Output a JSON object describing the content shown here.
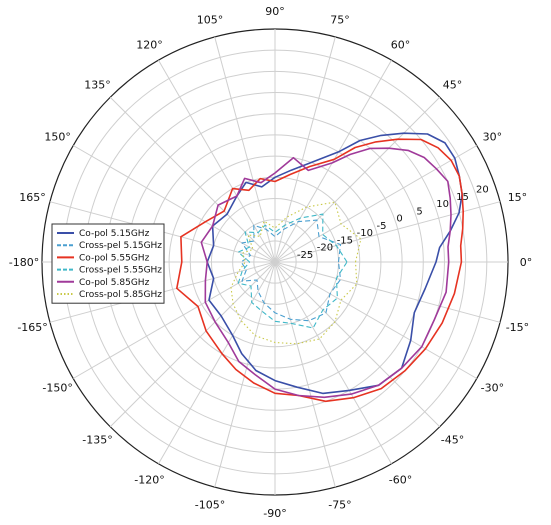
{
  "chart_data": {
    "type": "polar-line",
    "title": "",
    "angle_unit": "degree",
    "angle_ticks": [
      "90°",
      "75°",
      "60°",
      "45°",
      "30°",
      "15°",
      "0°",
      "-15°",
      "-30°",
      "-45°",
      "-60°",
      "-75°",
      "-90°",
      "-105°",
      "-120°",
      "-135°",
      "-150°",
      "-165°",
      "-180°",
      "165°",
      "150°",
      "135°",
      "120°",
      "105°"
    ],
    "angle_tick_values": [
      90,
      75,
      60,
      45,
      30,
      15,
      0,
      -15,
      -30,
      -45,
      -60,
      -75,
      -90,
      -105,
      -120,
      -135,
      -150,
      -165,
      -180,
      165,
      150,
      135,
      120,
      105
    ],
    "radial_ticks": [
      "-25",
      "-20",
      "-15",
      "-10",
      "-5",
      "0",
      "5",
      "10",
      "15",
      "20"
    ],
    "radial_tick_values": [
      -25,
      -20,
      -15,
      -10,
      -5,
      0,
      5,
      10,
      15,
      20
    ],
    "radial_range": [
      -30,
      25
    ],
    "legend_position": "left",
    "grid": true,
    "series": [
      {
        "name": "Co-pol 5.15GHz",
        "color": "#3a4fa8",
        "dash": "solid",
        "points": [
          [
            0,
            8
          ],
          [
            5,
            9
          ],
          [
            10,
            12
          ],
          [
            15,
            15
          ],
          [
            20,
            17
          ],
          [
            25,
            18
          ],
          [
            30,
            19
          ],
          [
            35,
            19
          ],
          [
            40,
            17
          ],
          [
            45,
            13
          ],
          [
            50,
            9
          ],
          [
            55,
            5
          ],
          [
            60,
            0
          ],
          [
            70,
            -5
          ],
          [
            80,
            -8
          ],
          [
            90,
            -10
          ],
          [
            100,
            -12
          ],
          [
            110,
            -10
          ],
          [
            120,
            -12
          ],
          [
            135,
            -14
          ],
          [
            150,
            -13
          ],
          [
            165,
            -15
          ],
          [
            180,
            -14
          ],
          [
            195,
            -15
          ],
          [
            210,
            -12
          ],
          [
            225,
            -12
          ],
          [
            240,
            -10
          ],
          [
            250,
            -7
          ],
          [
            260,
            -4
          ],
          [
            270,
            -2
          ],
          [
            280,
            0
          ],
          [
            290,
            3
          ],
          [
            300,
            5
          ],
          [
            310,
            8
          ],
          [
            320,
            9
          ],
          [
            330,
            7
          ],
          [
            340,
            5
          ],
          [
            350,
            6
          ]
        ]
      },
      {
        "name": "Cross-pel 5.15GHz",
        "color": "#4a9fd0",
        "dash": "dashed",
        "points": [
          [
            0,
            -15
          ],
          [
            15,
            -14
          ],
          [
            30,
            -18
          ],
          [
            45,
            -16
          ],
          [
            60,
            -19
          ],
          [
            75,
            -22
          ],
          [
            90,
            -24
          ],
          [
            105,
            -22
          ],
          [
            120,
            -20
          ],
          [
            135,
            -23
          ],
          [
            150,
            -21
          ],
          [
            165,
            -24
          ],
          [
            180,
            -22
          ],
          [
            195,
            -23
          ],
          [
            210,
            -21
          ],
          [
            225,
            -24
          ],
          [
            240,
            -22
          ],
          [
            255,
            -20
          ],
          [
            270,
            -18
          ],
          [
            285,
            -16
          ],
          [
            300,
            -14
          ],
          [
            315,
            -13
          ],
          [
            330,
            -15
          ],
          [
            345,
            -14
          ]
        ]
      },
      {
        "name": "Co-pol 5.55GHz",
        "color": "#e63322",
        "dash": "solid",
        "points": [
          [
            0,
            14
          ],
          [
            5,
            14
          ],
          [
            10,
            15
          ],
          [
            15,
            16
          ],
          [
            20,
            17
          ],
          [
            25,
            18
          ],
          [
            30,
            18
          ],
          [
            35,
            17
          ],
          [
            40,
            15
          ],
          [
            45,
            11
          ],
          [
            50,
            7
          ],
          [
            55,
            3
          ],
          [
            60,
            -2
          ],
          [
            70,
            -6
          ],
          [
            80,
            -9
          ],
          [
            90,
            -11
          ],
          [
            100,
            -10
          ],
          [
            110,
            -12
          ],
          [
            120,
            -10
          ],
          [
            135,
            -13
          ],
          [
            150,
            -11
          ],
          [
            165,
            -7
          ],
          [
            180,
            -8
          ],
          [
            195,
            -6
          ],
          [
            210,
            -9
          ],
          [
            225,
            -7
          ],
          [
            240,
            -5
          ],
          [
            250,
            -3
          ],
          [
            260,
            -1
          ],
          [
            270,
            1
          ],
          [
            280,
            2
          ],
          [
            290,
            5
          ],
          [
            300,
            7
          ],
          [
            310,
            9
          ],
          [
            320,
            10
          ],
          [
            330,
            11
          ],
          [
            340,
            12
          ],
          [
            350,
            13
          ]
        ]
      },
      {
        "name": "Cross-pel 5.55GHz",
        "color": "#40b8c8",
        "dash": "dashed",
        "points": [
          [
            0,
            -13
          ],
          [
            15,
            -15
          ],
          [
            30,
            -17
          ],
          [
            45,
            -14
          ],
          [
            60,
            -18
          ],
          [
            75,
            -21
          ],
          [
            90,
            -23
          ],
          [
            105,
            -21
          ],
          [
            120,
            -22
          ],
          [
            135,
            -20
          ],
          [
            150,
            -23
          ],
          [
            165,
            -21
          ],
          [
            180,
            -24
          ],
          [
            195,
            -22
          ],
          [
            210,
            -20
          ],
          [
            225,
            -22
          ],
          [
            240,
            -19
          ],
          [
            255,
            -18
          ],
          [
            270,
            -16
          ],
          [
            285,
            -15
          ],
          [
            300,
            -12
          ],
          [
            315,
            -14
          ],
          [
            330,
            -13
          ],
          [
            345,
            -15
          ]
        ]
      },
      {
        "name": "Co-pol 5.85GHz",
        "color": "#a03a9a",
        "dash": "solid",
        "points": [
          [
            0,
            11
          ],
          [
            5,
            11
          ],
          [
            10,
            12
          ],
          [
            15,
            13
          ],
          [
            20,
            14
          ],
          [
            25,
            15
          ],
          [
            30,
            14
          ],
          [
            35,
            13
          ],
          [
            40,
            11
          ],
          [
            45,
            8
          ],
          [
            50,
            5
          ],
          [
            55,
            1
          ],
          [
            60,
            -3
          ],
          [
            70,
            -7
          ],
          [
            80,
            -5
          ],
          [
            90,
            -9
          ],
          [
            100,
            -11
          ],
          [
            110,
            -9
          ],
          [
            120,
            -12
          ],
          [
            135,
            -11
          ],
          [
            150,
            -13
          ],
          [
            165,
            -12
          ],
          [
            180,
            -14
          ],
          [
            195,
            -13
          ],
          [
            210,
            -11
          ],
          [
            225,
            -10
          ],
          [
            240,
            -8
          ],
          [
            250,
            -5
          ],
          [
            260,
            -3
          ],
          [
            270,
            0
          ],
          [
            280,
            2
          ],
          [
            290,
            4
          ],
          [
            300,
            6
          ],
          [
            310,
            8
          ],
          [
            320,
            9
          ],
          [
            330,
            10
          ],
          [
            340,
            10
          ],
          [
            350,
            11
          ]
        ]
      },
      {
        "name": "Cross-pol 5.85GHz",
        "color": "#c9c948",
        "dash": "dotted",
        "points": [
          [
            0,
            -11
          ],
          [
            15,
            -9
          ],
          [
            30,
            -12
          ],
          [
            45,
            -10
          ],
          [
            60,
            -15
          ],
          [
            75,
            -19
          ],
          [
            90,
            -22
          ],
          [
            105,
            -20
          ],
          [
            120,
            -23
          ],
          [
            135,
            -21
          ],
          [
            150,
            -24
          ],
          [
            165,
            -22
          ],
          [
            180,
            -23
          ],
          [
            195,
            -21
          ],
          [
            210,
            -18
          ],
          [
            225,
            -16
          ],
          [
            240,
            -14
          ],
          [
            255,
            -12
          ],
          [
            270,
            -11
          ],
          [
            285,
            -10
          ],
          [
            300,
            -9
          ],
          [
            315,
            -10
          ],
          [
            330,
            -12
          ],
          [
            345,
            -10
          ]
        ]
      }
    ]
  }
}
